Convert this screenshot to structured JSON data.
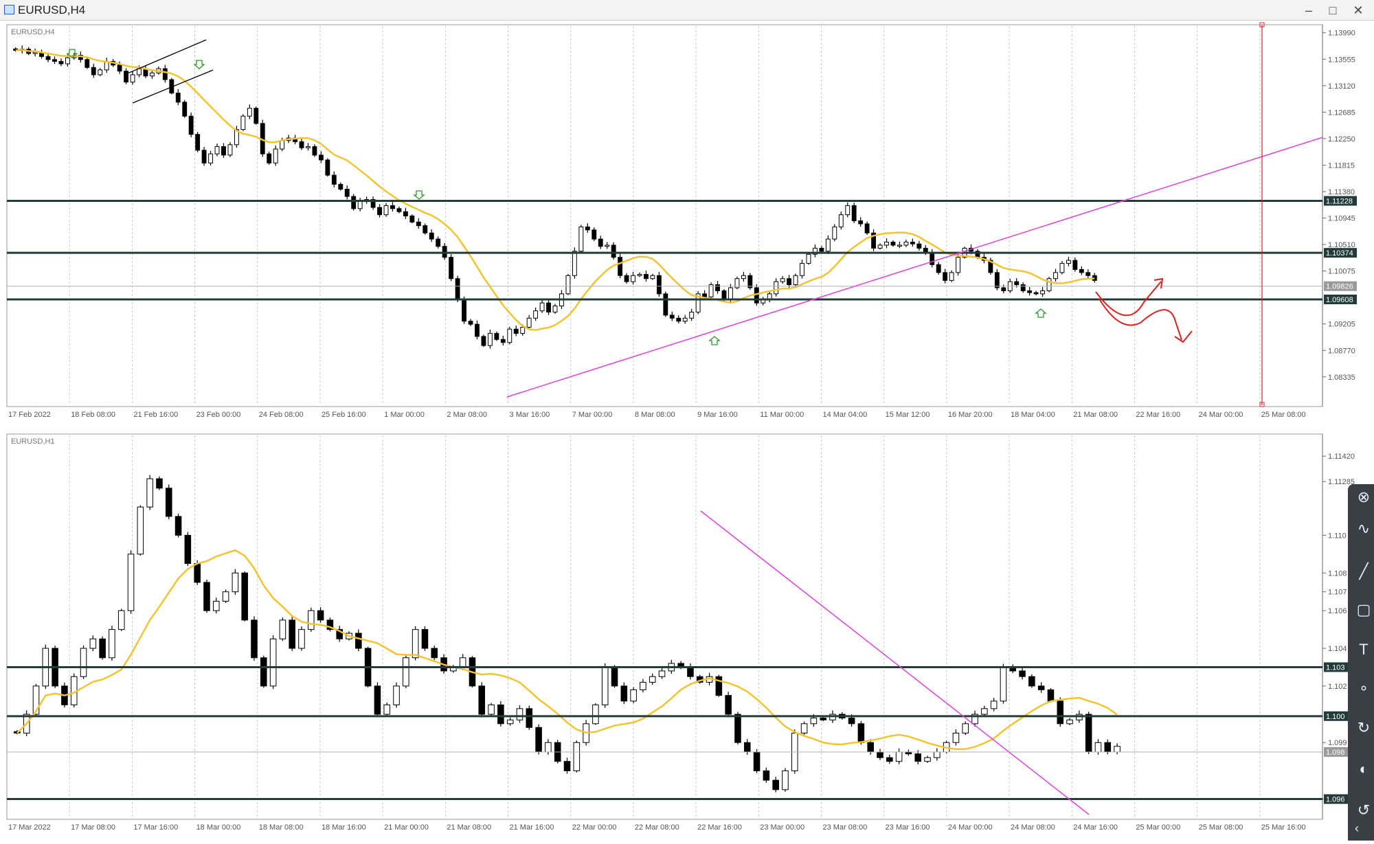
{
  "window": {
    "title": "EURUSD,H4",
    "controls": [
      "–",
      "□",
      "✕"
    ],
    "icon": "chart-window-icon"
  },
  "colors": {
    "bull": "#ffffff",
    "bear": "#000000",
    "ma": "#f4c430",
    "level": "#243b3b",
    "trendline": "#e040e0",
    "annotation": "#e02020",
    "grid": "#c8c8c8"
  },
  "toolbox": {
    "icons": [
      "close-icon",
      "pen-icon",
      "curve-icon",
      "line-icon",
      "rectangle-icon",
      "text-icon",
      "nodes-icon",
      "rotate-icon",
      "color-icon",
      "circle-arrow-icon"
    ],
    "glyphs": [
      "⊗",
      "∿",
      "╱",
      "▢",
      "T",
      "∘",
      "↻",
      "◐",
      "↺",
      "‹"
    ]
  },
  "chart_data": [
    {
      "type": "candlestick",
      "symbol_label": "EURUSD,H4",
      "ylim": [
        1.0787,
        1.141
      ],
      "y_ticks": [
        "1.13990",
        "1.13555",
        "1.13120",
        "1.12685",
        "1.12250",
        "1.11815",
        "1.11380",
        "1.10945",
        "1.10510",
        "1.10075",
        "1.09205",
        "1.08770",
        "1.08335"
      ],
      "x_ticks": [
        "17 Feb 2022",
        "18 Feb 08:00",
        "21 Feb 16:00",
        "23 Feb 00:00",
        "24 Feb 08:00",
        "25 Feb 16:00",
        "1 Mar 00:00",
        "2 Mar 08:00",
        "3 Mar 16:00",
        "7 Mar 00:00",
        "8 Mar 08:00",
        "9 Mar 16:00",
        "11 Mar 00:00",
        "14 Mar 04:00",
        "15 Mar 12:00",
        "16 Mar 20:00",
        "18 Mar 04:00",
        "21 Mar 08:00",
        "22 Mar 16:00",
        "24 Mar 00:00",
        "25 Mar 08:00"
      ],
      "levels": [
        {
          "price": 1.11228,
          "label": "1.11228"
        },
        {
          "price": 1.10374,
          "label": "1.10374"
        },
        {
          "price": 1.09608,
          "label": "1.09608"
        }
      ],
      "current_price": {
        "price": 1.09826,
        "label": "1.09826"
      },
      "close_series": [
        1.137,
        1.1372,
        1.1365,
        1.1367,
        1.136,
        1.1355,
        1.1352,
        1.1348,
        1.1358,
        1.1362,
        1.1355,
        1.1342,
        1.133,
        1.1338,
        1.1352,
        1.1346,
        1.1336,
        1.1318,
        1.133,
        1.134,
        1.1328,
        1.1333,
        1.134,
        1.1322,
        1.13,
        1.1285,
        1.1262,
        1.1232,
        1.1206,
        1.1185,
        1.12,
        1.1212,
        1.1198,
        1.1215,
        1.124,
        1.1262,
        1.1275,
        1.125,
        1.12,
        1.1185,
        1.1208,
        1.1222,
        1.1226,
        1.122,
        1.121,
        1.1212,
        1.1198,
        1.119,
        1.1165,
        1.115,
        1.1142,
        1.113,
        1.111,
        1.1122,
        1.1125,
        1.1112,
        1.11,
        1.1115,
        1.111,
        1.1105,
        1.1098,
        1.1088,
        1.1082,
        1.107,
        1.106,
        1.1048,
        1.103,
        1.0995,
        1.096,
        1.0925,
        1.092,
        1.09,
        1.0885,
        1.0905,
        1.0895,
        1.089,
        1.0912,
        1.0905,
        1.0915,
        1.093,
        1.0942,
        1.0955,
        1.094,
        1.095,
        1.097,
        1.1,
        1.104,
        1.108,
        1.1075,
        1.106,
        1.1048,
        1.105,
        1.103,
        1.1,
        1.099,
        1.1,
        1.1002,
        1.0995,
        1.1,
        1.097,
        1.0935,
        1.093,
        1.0925,
        1.093,
        1.094,
        1.097,
        1.0965,
        1.0985,
        1.0975,
        1.096,
        1.098,
        1.0995,
        1.1,
        1.098,
        1.0955,
        1.096,
        1.097,
        1.099,
        1.0995,
        1.0985,
        1.1,
        1.102,
        1.1035,
        1.1045,
        1.104,
        1.106,
        1.108,
        1.11,
        1.1115,
        1.109,
        1.1085,
        1.107,
        1.1045,
        1.105,
        1.1055,
        1.105,
        1.105,
        1.1055,
        1.1052,
        1.1045,
        1.1038,
        1.1018,
        1.1005,
        1.0992,
        1.1005,
        1.103,
        1.1045,
        1.104,
        1.103,
        1.1025,
        1.1005,
        1.098,
        1.0975,
        1.099,
        1.0985,
        1.0975,
        1.0972,
        1.097,
        1.0975,
        1.0995,
        1.1005,
        1.102,
        1.1025,
        1.101,
        1.1005,
        1.1,
        1.0992
      ],
      "annotations": [
        "green-arrow",
        "channel-lines",
        "red-projection-arrows",
        "vertical-red-line"
      ]
    },
    {
      "type": "candlestick",
      "symbol_label": "EURUSD,H1",
      "ylim": [
        1.095,
        1.1153
      ],
      "y_ticks": [
        "1.11420",
        "1.11285",
        "1.110",
        "1.108",
        "1.107",
        "1.106",
        "1.104",
        "1.102",
        "1.099",
        "1.096"
      ],
      "x_ticks": [
        "17 Mar 2022",
        "17 Mar 08:00",
        "17 Mar 16:00",
        "18 Mar 00:00",
        "18 Mar 08:00",
        "18 Mar 16:00",
        "21 Mar 00:00",
        "21 Mar 08:00",
        "21 Mar 16:00",
        "22 Mar 00:00",
        "22 Mar 08:00",
        "22 Mar 16:00",
        "23 Mar 00:00",
        "23 Mar 08:00",
        "23 Mar 16:00",
        "24 Mar 00:00",
        "24 Mar 08:00",
        "24 Mar 16:00",
        "25 Mar 00:00",
        "25 Mar 08:00",
        "25 Mar 16:00"
      ],
      "levels": [
        {
          "price": 1.103,
          "label": "1.103"
        },
        {
          "price": 1.1004,
          "label": "1.100"
        },
        {
          "price": 1.096,
          "label": "1.096"
        }
      ],
      "current_price": {
        "price": 1.0985,
        "label": "1.098"
      },
      "close_series": [
        1.0995,
        1.1005,
        1.102,
        1.104,
        1.102,
        1.101,
        1.1025,
        1.104,
        1.1045,
        1.1035,
        1.105,
        1.106,
        1.109,
        1.1115,
        1.113,
        1.1125,
        1.111,
        1.11,
        1.1085,
        1.1075,
        1.106,
        1.1065,
        1.107,
        1.108,
        1.1055,
        1.1035,
        1.102,
        1.1045,
        1.1055,
        1.104,
        1.105,
        1.106,
        1.1055,
        1.105,
        1.1045,
        1.1048,
        1.104,
        1.102,
        1.1005,
        1.101,
        1.102,
        1.1035,
        1.105,
        1.104,
        1.1035,
        1.1028,
        1.103,
        1.1035,
        1.102,
        1.1005,
        1.101,
        1.1,
        1.1002,
        1.1008,
        1.0998,
        1.0985,
        1.099,
        1.098,
        1.0975,
        1.099,
        1.1,
        1.101,
        1.103,
        1.102,
        1.1012,
        1.1018,
        1.1022,
        1.1025,
        1.1028,
        1.1032,
        1.103,
        1.1025,
        1.1022,
        1.1025,
        1.1015,
        1.1005,
        1.099,
        1.0985,
        1.0975,
        1.097,
        1.0965,
        1.0975,
        1.0995,
        1.1,
        1.1003,
        1.1002,
        1.1005,
        1.1003,
        1.1,
        1.099,
        1.0985,
        1.0982,
        1.098,
        1.0985,
        1.0984,
        1.098,
        1.0982,
        1.0985,
        1.099,
        1.0995,
        1.1,
        1.1005,
        1.1008,
        1.1012,
        1.103,
        1.1028,
        1.1025,
        1.102,
        1.1018,
        1.1012,
        1.1,
        1.1002,
        1.1005,
        1.0985,
        1.099,
        1.0985,
        1.0988
      ],
      "annotations": [
        "trendline-down"
      ]
    }
  ]
}
